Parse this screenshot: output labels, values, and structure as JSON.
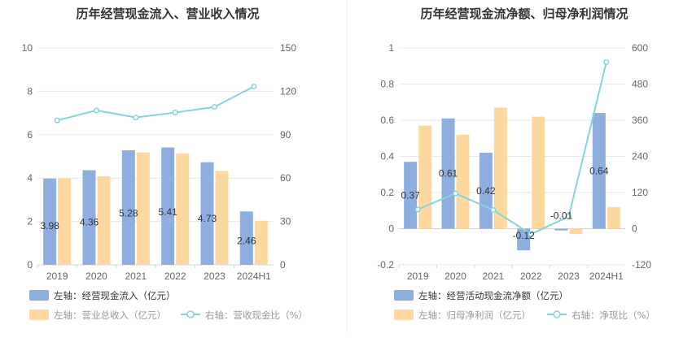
{
  "colors": {
    "bar_blue": "#8eaee0",
    "bar_orange": "#fdd9a0",
    "line_teal": "#86d4da",
    "grid": "#e9e9ee",
    "axis_text": "#666666",
    "legend_active": "#333333",
    "legend_inactive": "#999999"
  },
  "chart_data": [
    {
      "type": "bar",
      "title": "历年经营现金流入、营业收入情况",
      "categories": [
        "2019",
        "2020",
        "2021",
        "2022",
        "2023",
        "2024H1"
      ],
      "ylim_left": [
        0,
        10
      ],
      "yticks_left": [
        "0",
        "2",
        "4",
        "6",
        "8",
        "10"
      ],
      "ylim_right": [
        0,
        150
      ],
      "yticks_right": [
        "0",
        "30",
        "60",
        "90",
        "120",
        "150"
      ],
      "grid": true,
      "series": [
        {
          "name": "左轴：经营现金流入（亿元）",
          "kind": "bar",
          "axis": "left",
          "color": "#8eaee0",
          "values": [
            3.98,
            4.36,
            5.28,
            5.41,
            4.73,
            2.46
          ],
          "labels": [
            "3.98",
            "4.36",
            "5.28",
            "5.41",
            "4.73",
            "2.46"
          ]
        },
        {
          "name": "左轴：营业总收入（亿元）",
          "kind": "bar",
          "axis": "left",
          "color": "#fdd9a0",
          "values": [
            3.98,
            4.08,
            5.18,
            5.14,
            4.33,
            2.03
          ]
        },
        {
          "name": "右轴：营收现金比（%）",
          "kind": "line",
          "axis": "right",
          "color": "#86d4da",
          "values": [
            99.9,
            106.8,
            101.9,
            105.3,
            109.2,
            123.3
          ]
        }
      ],
      "legend": [
        {
          "label": "左轴：经营现金流入（亿元）",
          "shape": "bar",
          "color": "#8eaee0",
          "active": true
        },
        {
          "label": "左轴：营业总收入（亿元）",
          "shape": "bar",
          "color": "#fdd9a0",
          "active": false
        },
        {
          "label": "右轴：营收现金比（%）",
          "shape": "line",
          "color": "#86d4da",
          "active": false
        }
      ],
      "legend_position": "bottom-left"
    },
    {
      "type": "bar",
      "title": "历年经营现金流净额、归母净利润情况",
      "categories": [
        "2019",
        "2020",
        "2021",
        "2022",
        "2023",
        "2024H1"
      ],
      "ylim_left": [
        -0.2,
        1
      ],
      "yticks_left": [
        "-0.2",
        "0",
        "0.2",
        "0.4",
        "0.6",
        "0.8",
        "1"
      ],
      "ylim_right": [
        -120,
        600
      ],
      "yticks_right": [
        "-120",
        "0",
        "120",
        "240",
        "360",
        "480",
        "600"
      ],
      "grid": true,
      "series": [
        {
          "name": "左轴：经营活动现金流净额（亿元）",
          "kind": "bar",
          "axis": "left",
          "color": "#8eaee0",
          "values": [
            0.37,
            0.61,
            0.42,
            -0.12,
            -0.01,
            0.64
          ],
          "labels": [
            "0.37",
            "0.61",
            "0.42",
            "-0.12",
            "-0.01",
            "0.64"
          ]
        },
        {
          "name": "左轴：归母净利润（亿元）",
          "kind": "bar",
          "axis": "left",
          "color": "#fdd9a0",
          "values": [
            0.57,
            0.52,
            0.67,
            0.62,
            -0.03,
            0.12
          ]
        },
        {
          "name": "右轴：净现比（%）",
          "kind": "line",
          "axis": "right",
          "color": "#86d4da",
          "values": [
            64,
            117,
            62,
            -18,
            40,
            553
          ]
        }
      ],
      "legend": [
        {
          "label": "左轴：经营活动现金流净额（亿元）",
          "shape": "bar",
          "color": "#8eaee0",
          "active": true
        },
        {
          "label": "左轴：归母净利润（亿元）",
          "shape": "bar",
          "color": "#fdd9a0",
          "active": false
        },
        {
          "label": "右轴：净现比（%）",
          "shape": "line",
          "color": "#86d4da",
          "active": false
        }
      ],
      "legend_position": "bottom-left"
    }
  ]
}
